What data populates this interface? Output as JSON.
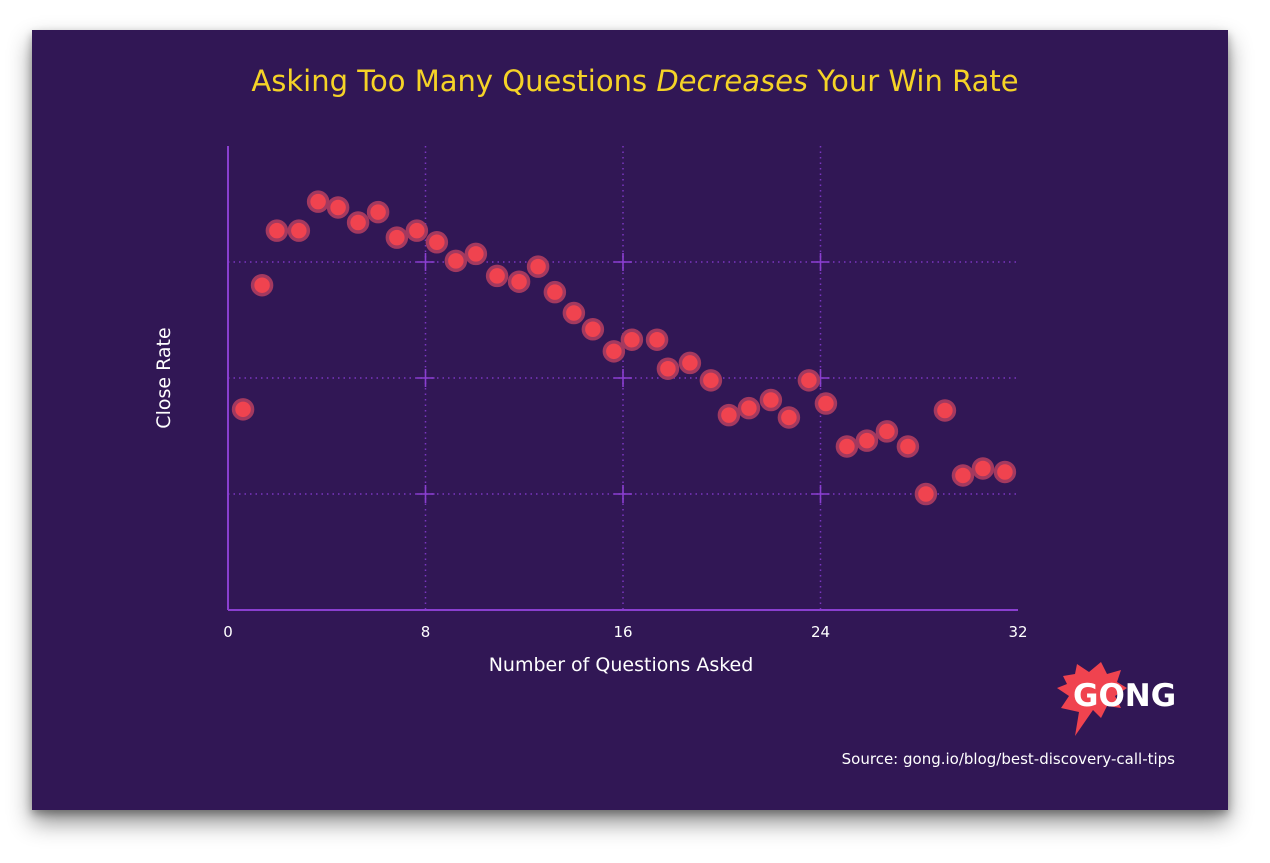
{
  "chart_data": {
    "type": "scatter",
    "title_parts": [
      "Asking Too Many Questions ",
      "Decreases",
      " Your Win Rate"
    ],
    "xlabel": "Number of Questions Asked",
    "ylabel": "Close Rate",
    "xlim": [
      0,
      32
    ],
    "ylim": [
      0,
      4
    ],
    "xticks": [
      "0",
      "8",
      "16",
      "24",
      "32"
    ],
    "xtick_values": [
      0,
      8,
      16,
      24,
      32
    ],
    "ygrid_values": [
      1,
      2,
      3
    ],
    "yticks_labeled": false,
    "grid": true,
    "points": [
      [
        0.61,
        1.73
      ],
      [
        1.38,
        2.8
      ],
      [
        1.98,
        3.27
      ],
      [
        2.87,
        3.27
      ],
      [
        3.65,
        3.52
      ],
      [
        4.46,
        3.47
      ],
      [
        5.27,
        3.34
      ],
      [
        6.08,
        3.43
      ],
      [
        6.84,
        3.21
      ],
      [
        7.65,
        3.27
      ],
      [
        8.46,
        3.17
      ],
      [
        9.23,
        3.01
      ],
      [
        10.04,
        3.07
      ],
      [
        10.9,
        2.88
      ],
      [
        11.79,
        2.83
      ],
      [
        12.56,
        2.96
      ],
      [
        13.24,
        2.74
      ],
      [
        14.01,
        2.56
      ],
      [
        14.78,
        2.42
      ],
      [
        15.63,
        2.23
      ],
      [
        16.36,
        2.33
      ],
      [
        17.38,
        2.33
      ],
      [
        17.82,
        2.08
      ],
      [
        18.71,
        2.13
      ],
      [
        19.56,
        1.98
      ],
      [
        20.29,
        1.68
      ],
      [
        21.1,
        1.74
      ],
      [
        21.99,
        1.81
      ],
      [
        22.72,
        1.66
      ],
      [
        23.53,
        1.98
      ],
      [
        24.22,
        1.78
      ],
      [
        25.07,
        1.41
      ],
      [
        25.88,
        1.46
      ],
      [
        26.69,
        1.54
      ],
      [
        27.54,
        1.41
      ],
      [
        28.27,
        1.0
      ],
      [
        29.04,
        1.72
      ],
      [
        29.77,
        1.16
      ],
      [
        30.58,
        1.22
      ],
      [
        31.47,
        1.19
      ]
    ]
  },
  "colors": {
    "background": "#311755",
    "title": "#f5d327",
    "axis": "#8a3fd0",
    "grid": "#7a36c0",
    "point_fill": "#f0434f",
    "point_ring": "#a3395f",
    "logo": "#f0434f"
  },
  "logo": {
    "text": "GONG"
  },
  "source": "Source: gong.io/blog/best-discovery-call-tips"
}
